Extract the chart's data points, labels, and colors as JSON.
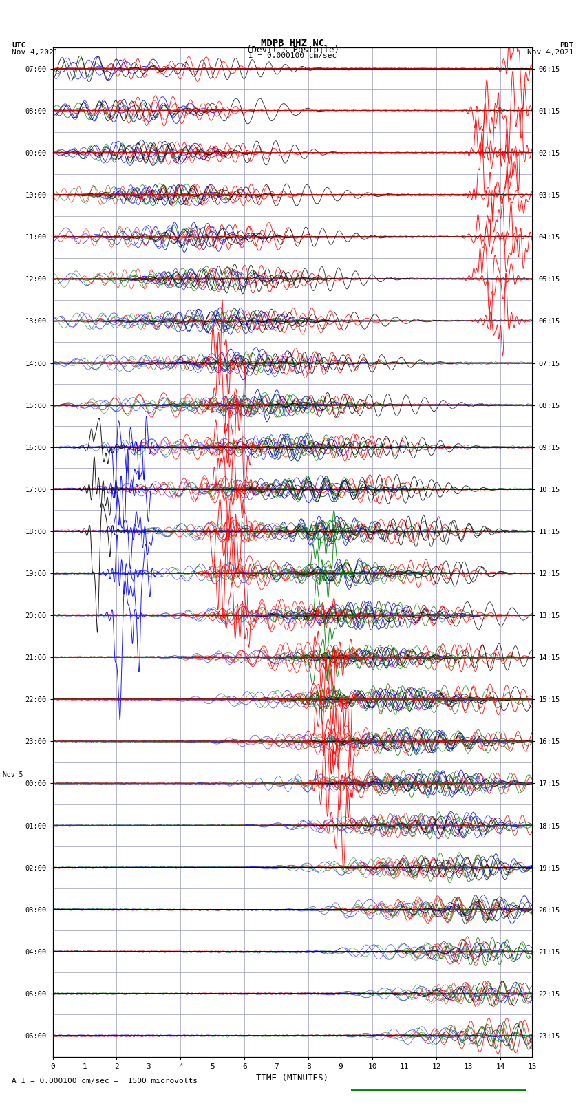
{
  "title_line1": "MDPB HHZ NC",
  "title_line2": "(Devil's Postpile)",
  "scale_text": "I = 0.000100 cm/sec",
  "bottom_text": "A I = 0.000100 cm/sec =  1500 microvolts",
  "utc_label": "UTC",
  "utc_date": "Nov 4,2021",
  "pdt_label": "PDT",
  "pdt_date": "Nov 4,2021",
  "xlabel": "TIME (MINUTES)",
  "xlim": [
    0,
    15
  ],
  "xticks": [
    0,
    1,
    2,
    3,
    4,
    5,
    6,
    7,
    8,
    9,
    10,
    11,
    12,
    13,
    14,
    15
  ],
  "left_times": [
    "07:00",
    "08:00",
    "09:00",
    "10:00",
    "11:00",
    "12:00",
    "13:00",
    "14:00",
    "15:00",
    "16:00",
    "17:00",
    "18:00",
    "19:00",
    "20:00",
    "21:00",
    "22:00",
    "23:00",
    "00:00",
    "01:00",
    "02:00",
    "03:00",
    "04:00",
    "05:00",
    "06:00"
  ],
  "right_times": [
    "00:15",
    "01:15",
    "02:15",
    "03:15",
    "04:15",
    "05:15",
    "06:15",
    "07:15",
    "08:15",
    "09:15",
    "10:15",
    "11:15",
    "12:15",
    "13:15",
    "14:15",
    "15:15",
    "16:15",
    "17:15",
    "18:15",
    "19:15",
    "20:15",
    "21:15",
    "22:15",
    "23:15"
  ],
  "nov5_label_row": 17,
  "n_rows": 24,
  "bg_color": "#ffffff",
  "grid_color": "#9999bb",
  "colors": [
    "black",
    "blue",
    "red",
    "green"
  ],
  "seed": 42
}
